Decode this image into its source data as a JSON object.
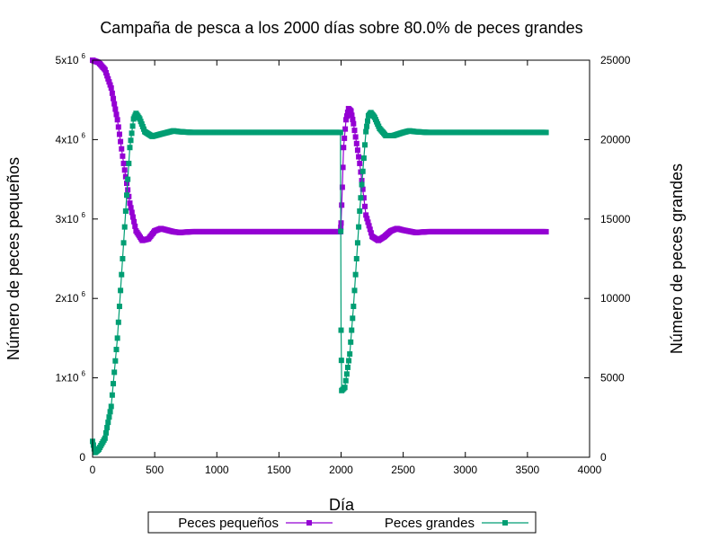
{
  "chart_data": {
    "type": "line",
    "title": "Campaña de pesca a los 2000 días sobre 80.0% de peces grandes",
    "xlabel": "Día",
    "ylabel": "Número de peces pequeños",
    "y2label": "Número de peces grandes",
    "xlim": [
      0,
      4000
    ],
    "ylim": [
      0,
      5000000
    ],
    "y2lim": [
      0,
      25000
    ],
    "xticks": [
      0,
      500,
      1000,
      1500,
      2000,
      2500,
      3000,
      3500,
      4000
    ],
    "yticks": [
      {
        "value": 0,
        "mantissa": "0",
        "exp": ""
      },
      {
        "value": 1000000,
        "mantissa": "1x10",
        "exp": "6"
      },
      {
        "value": 2000000,
        "mantissa": "2x10",
        "exp": "6"
      },
      {
        "value": 3000000,
        "mantissa": "3x10",
        "exp": "6"
      },
      {
        "value": 4000000,
        "mantissa": "4x10",
        "exp": "6"
      },
      {
        "value": 5000000,
        "mantissa": "5x10",
        "exp": "6"
      }
    ],
    "y2ticks": [
      0,
      5000,
      10000,
      15000,
      20000,
      25000
    ],
    "grid": false,
    "legend_position": "bottom-center-outside",
    "series": [
      {
        "name": "Peces pequeños",
        "axis": "y",
        "color": "#9400D3",
        "points": [
          [
            0,
            5000000
          ],
          [
            50,
            4970000
          ],
          [
            100,
            4880000
          ],
          [
            150,
            4650000
          ],
          [
            200,
            4250000
          ],
          [
            250,
            3700000
          ],
          [
            300,
            3200000
          ],
          [
            350,
            2850000
          ],
          [
            400,
            2730000
          ],
          [
            450,
            2750000
          ],
          [
            500,
            2850000
          ],
          [
            550,
            2880000
          ],
          [
            600,
            2860000
          ],
          [
            650,
            2840000
          ],
          [
            700,
            2830000
          ],
          [
            800,
            2840000
          ],
          [
            1000,
            2840000
          ],
          [
            1500,
            2840000
          ],
          [
            1995,
            2840000
          ],
          [
            2000,
            2950000
          ],
          [
            2010,
            3400000
          ],
          [
            2020,
            3900000
          ],
          [
            2040,
            4250000
          ],
          [
            2060,
            4390000
          ],
          [
            2080,
            4360000
          ],
          [
            2100,
            4200000
          ],
          [
            2150,
            3700000
          ],
          [
            2200,
            3050000
          ],
          [
            2250,
            2780000
          ],
          [
            2300,
            2730000
          ],
          [
            2350,
            2780000
          ],
          [
            2400,
            2850000
          ],
          [
            2450,
            2880000
          ],
          [
            2500,
            2860000
          ],
          [
            2600,
            2830000
          ],
          [
            2700,
            2840000
          ],
          [
            3000,
            2840000
          ],
          [
            3650,
            2840000
          ]
        ]
      },
      {
        "name": "Peces grandes",
        "axis": "y2",
        "color": "#009E73",
        "points": [
          [
            0,
            1000
          ],
          [
            20,
            300
          ],
          [
            50,
            500
          ],
          [
            100,
            1200
          ],
          [
            150,
            3200
          ],
          [
            200,
            7500
          ],
          [
            250,
            13500
          ],
          [
            300,
            19500
          ],
          [
            330,
            21300
          ],
          [
            350,
            21650
          ],
          [
            380,
            21300
          ],
          [
            420,
            20500
          ],
          [
            480,
            20200
          ],
          [
            550,
            20350
          ],
          [
            600,
            20450
          ],
          [
            650,
            20550
          ],
          [
            700,
            20500
          ],
          [
            800,
            20450
          ],
          [
            1000,
            20450
          ],
          [
            1500,
            20450
          ],
          [
            1995,
            20450
          ],
          [
            2000,
            8000
          ],
          [
            2005,
            4200
          ],
          [
            2030,
            4400
          ],
          [
            2070,
            6500
          ],
          [
            2100,
            9500
          ],
          [
            2150,
            15500
          ],
          [
            2200,
            20500
          ],
          [
            2220,
            21500
          ],
          [
            2240,
            21700
          ],
          [
            2270,
            21400
          ],
          [
            2310,
            20700
          ],
          [
            2360,
            20250
          ],
          [
            2420,
            20250
          ],
          [
            2500,
            20450
          ],
          [
            2550,
            20550
          ],
          [
            2600,
            20500
          ],
          [
            2700,
            20450
          ],
          [
            3000,
            20450
          ],
          [
            3650,
            20450
          ]
        ]
      }
    ]
  }
}
